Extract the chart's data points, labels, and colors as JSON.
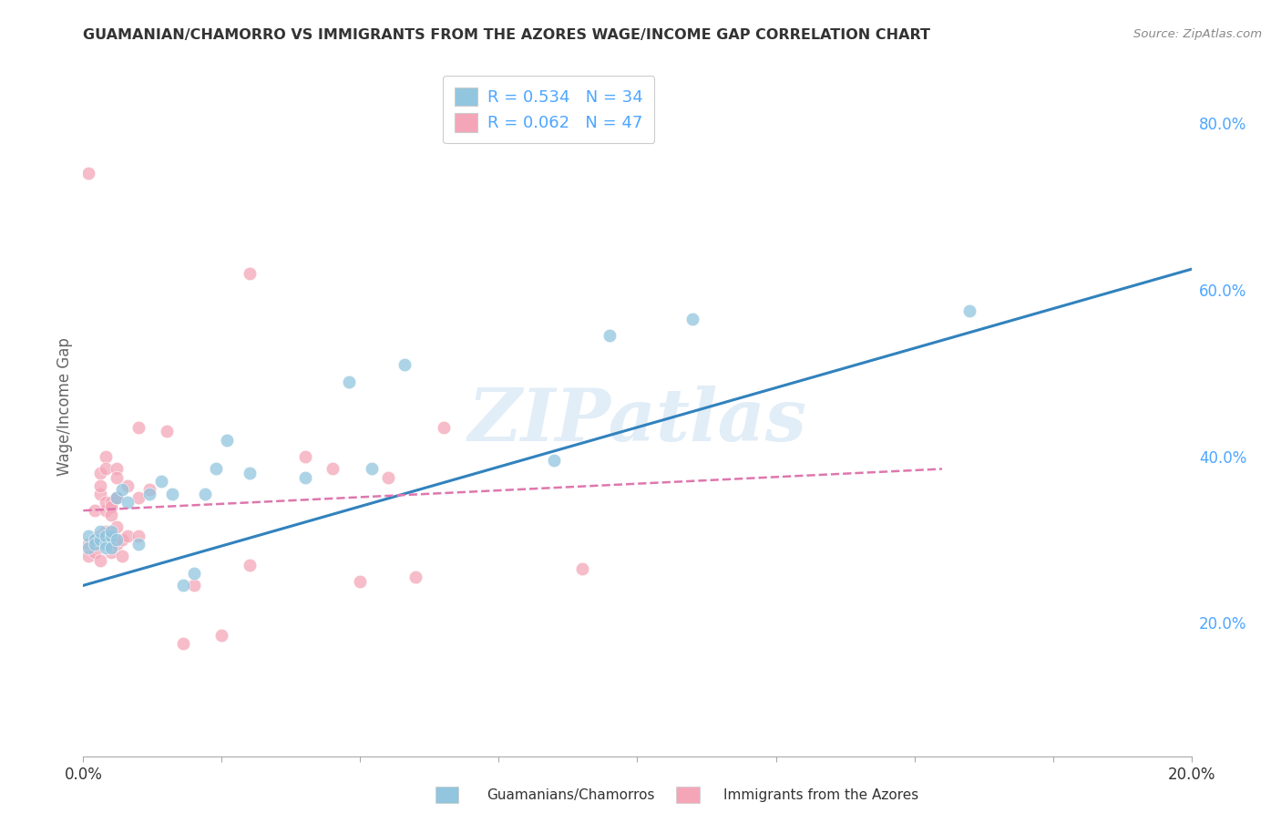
{
  "title": "GUAMANIAN/CHAMORRO VS IMMIGRANTS FROM THE AZORES WAGE/INCOME GAP CORRELATION CHART",
  "source": "Source: ZipAtlas.com",
  "ylabel": "Wage/Income Gap",
  "blue_R": 0.534,
  "blue_N": 34,
  "pink_R": 0.062,
  "pink_N": 47,
  "blue_label": "Guamanians/Chamorros",
  "pink_label": "Immigrants from the Azores",
  "xlim": [
    0.0,
    0.2
  ],
  "ylim": [
    0.04,
    0.88
  ],
  "right_yticks": [
    0.2,
    0.4,
    0.6,
    0.8
  ],
  "right_yticklabels": [
    "20.0%",
    "40.0%",
    "60.0%",
    "80.0%"
  ],
  "xticks": [
    0.0,
    0.025,
    0.05,
    0.075,
    0.1,
    0.125,
    0.15,
    0.175,
    0.2
  ],
  "xtick_show": [
    0.0,
    0.05,
    0.1,
    0.15,
    0.2
  ],
  "xticklabels_show": [
    "0.0%",
    "",
    "",
    "",
    "20.0%"
  ],
  "blue_scatter_x": [
    0.001,
    0.001,
    0.002,
    0.002,
    0.003,
    0.003,
    0.004,
    0.004,
    0.004,
    0.005,
    0.005,
    0.005,
    0.006,
    0.006,
    0.007,
    0.008,
    0.01,
    0.012,
    0.014,
    0.016,
    0.018,
    0.02,
    0.022,
    0.024,
    0.026,
    0.03,
    0.04,
    0.048,
    0.052,
    0.058,
    0.085,
    0.095,
    0.11,
    0.16
  ],
  "blue_scatter_y": [
    0.305,
    0.29,
    0.3,
    0.295,
    0.3,
    0.31,
    0.295,
    0.305,
    0.29,
    0.305,
    0.29,
    0.31,
    0.35,
    0.3,
    0.36,
    0.345,
    0.295,
    0.355,
    0.37,
    0.355,
    0.245,
    0.26,
    0.355,
    0.385,
    0.42,
    0.38,
    0.375,
    0.49,
    0.385,
    0.51,
    0.395,
    0.545,
    0.565,
    0.575
  ],
  "pink_scatter_x": [
    0.001,
    0.001,
    0.001,
    0.002,
    0.002,
    0.002,
    0.003,
    0.003,
    0.003,
    0.003,
    0.003,
    0.004,
    0.004,
    0.004,
    0.004,
    0.004,
    0.005,
    0.005,
    0.005,
    0.005,
    0.006,
    0.006,
    0.006,
    0.006,
    0.006,
    0.006,
    0.007,
    0.007,
    0.008,
    0.008,
    0.01,
    0.01,
    0.01,
    0.012,
    0.015,
    0.018,
    0.02,
    0.025,
    0.03,
    0.03,
    0.04,
    0.045,
    0.05,
    0.055,
    0.06,
    0.065,
    0.09
  ],
  "pink_scatter_y": [
    0.74,
    0.295,
    0.28,
    0.335,
    0.3,
    0.285,
    0.38,
    0.355,
    0.365,
    0.305,
    0.275,
    0.335,
    0.4,
    0.385,
    0.345,
    0.31,
    0.345,
    0.34,
    0.33,
    0.285,
    0.385,
    0.375,
    0.35,
    0.35,
    0.315,
    0.295,
    0.3,
    0.28,
    0.365,
    0.305,
    0.305,
    0.35,
    0.435,
    0.36,
    0.43,
    0.175,
    0.245,
    0.185,
    0.27,
    0.62,
    0.4,
    0.385,
    0.25,
    0.375,
    0.255,
    0.435,
    0.265
  ],
  "blue_line_x": [
    0.0,
    0.2
  ],
  "blue_line_y": [
    0.245,
    0.625
  ],
  "pink_line_x": [
    0.0,
    0.155
  ],
  "pink_line_y": [
    0.335,
    0.385
  ],
  "watermark": "ZIPatlas",
  "background_color": "#ffffff",
  "blue_color": "#92c5de",
  "pink_color": "#f4a6b8",
  "blue_line_color": "#3182bd",
  "pink_line_color": "#de77ae",
  "grid_color": "#d0d0d0",
  "title_color": "#333333",
  "axis_label_color": "#666666",
  "right_axis_color": "#4da6ff",
  "legend_color": "#4da6ff"
}
